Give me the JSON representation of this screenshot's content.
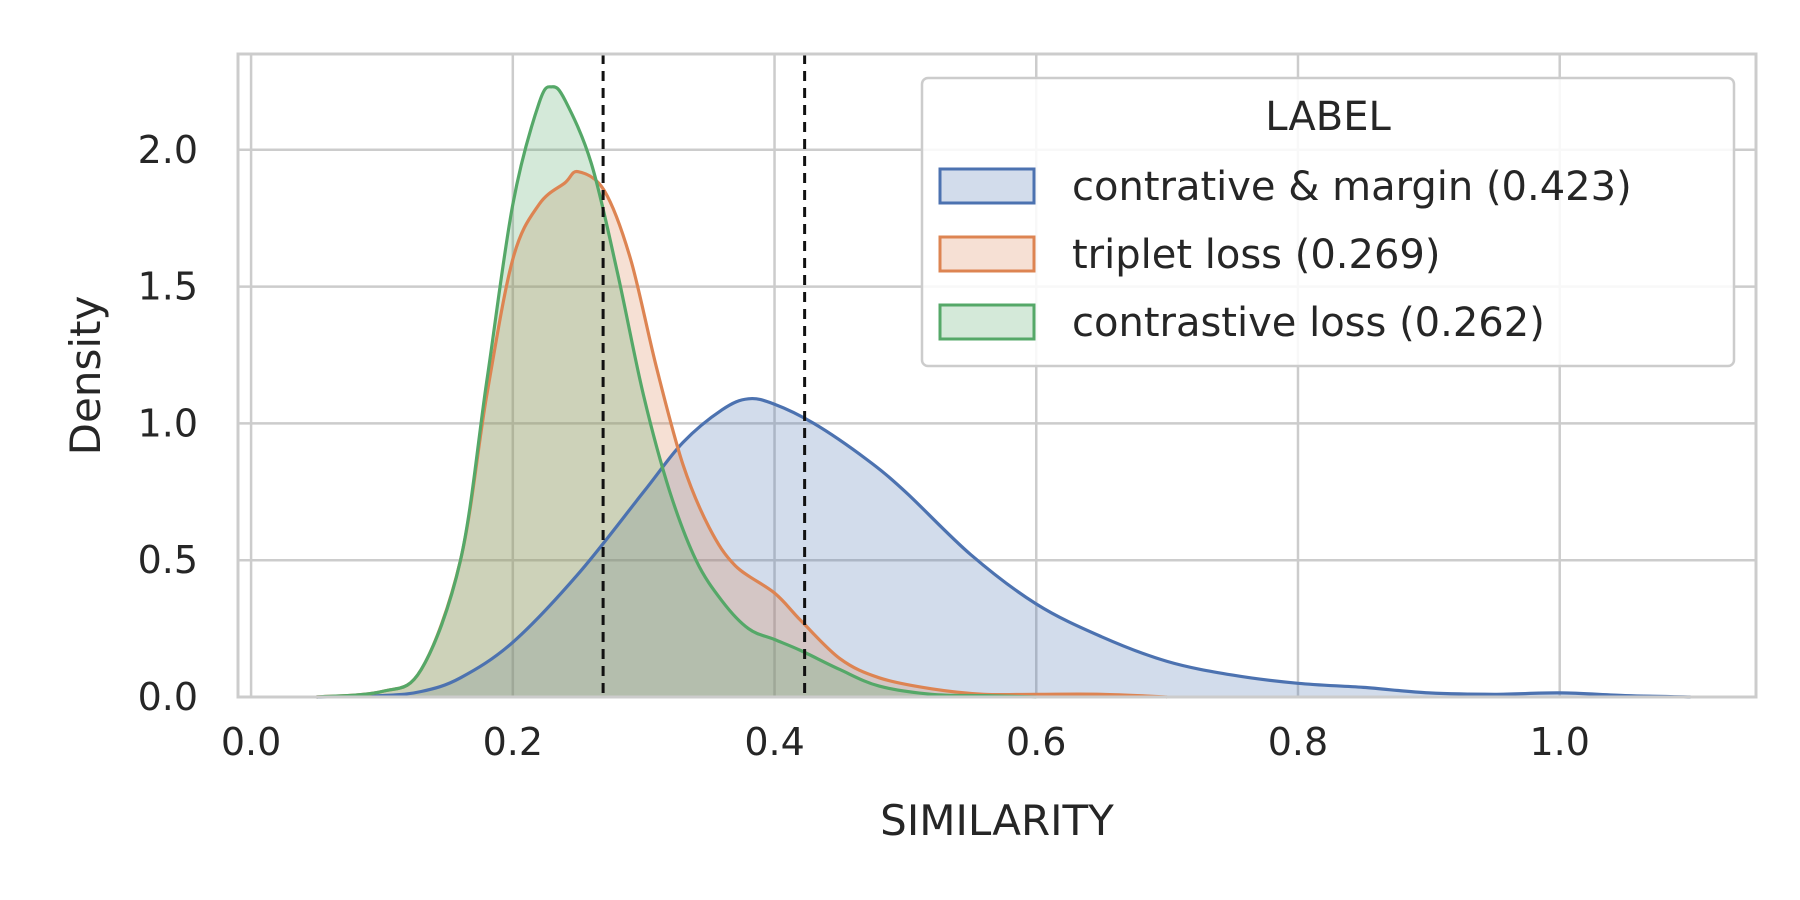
{
  "chart_data": {
    "type": "area",
    "xlabel": "SIMILARITY",
    "ylabel": "Density",
    "xlim": [
      -0.01,
      1.15
    ],
    "ylim": [
      0,
      2.35
    ],
    "xticks": [
      0.0,
      0.2,
      0.4,
      0.6,
      0.8,
      1.0
    ],
    "xtick_labels": [
      "0.0",
      "0.2",
      "0.4",
      "0.6",
      "0.8",
      "1.0"
    ],
    "yticks": [
      0.0,
      0.5,
      1.0,
      1.5,
      2.0
    ],
    "ytick_labels": [
      "0.0",
      "0.5",
      "1.0",
      "1.5",
      "2.0"
    ],
    "grid": true,
    "legend": {
      "title": "LABEL",
      "placement": "top-right"
    },
    "vlines": [
      {
        "x": 0.269,
        "style": "dashed",
        "color": "#111111"
      },
      {
        "x": 0.423,
        "style": "dashed",
        "color": "#111111"
      }
    ],
    "series": [
      {
        "name": "contrative & margin (0.423)",
        "color": "#4c72b0",
        "x": [
          0.05,
          0.1,
          0.13,
          0.16,
          0.2,
          0.25,
          0.3,
          0.33,
          0.36,
          0.38,
          0.4,
          0.43,
          0.47,
          0.5,
          0.55,
          0.6,
          0.65,
          0.7,
          0.75,
          0.8,
          0.85,
          0.9,
          0.95,
          1.0,
          1.05,
          1.1
        ],
        "y": [
          0.0,
          0.005,
          0.02,
          0.07,
          0.2,
          0.45,
          0.75,
          0.93,
          1.05,
          1.09,
          1.07,
          1.0,
          0.87,
          0.75,
          0.52,
          0.34,
          0.22,
          0.13,
          0.08,
          0.05,
          0.035,
          0.015,
          0.01,
          0.015,
          0.005,
          0.0
        ]
      },
      {
        "name": "triplet loss (0.269)",
        "color": "#dd8452",
        "x": [
          0.05,
          0.1,
          0.13,
          0.16,
          0.18,
          0.2,
          0.22,
          0.24,
          0.25,
          0.27,
          0.29,
          0.31,
          0.33,
          0.35,
          0.37,
          0.4,
          0.42,
          0.45,
          0.48,
          0.52,
          0.56,
          0.6,
          0.65,
          0.7
        ],
        "y": [
          0.0,
          0.02,
          0.1,
          0.5,
          1.1,
          1.6,
          1.8,
          1.88,
          1.92,
          1.85,
          1.6,
          1.2,
          0.85,
          0.62,
          0.48,
          0.38,
          0.28,
          0.14,
          0.07,
          0.03,
          0.01,
          0.01,
          0.01,
          0.0
        ]
      },
      {
        "name": "contrastive loss (0.262)",
        "color": "#55a868",
        "x": [
          0.05,
          0.1,
          0.13,
          0.16,
          0.18,
          0.2,
          0.22,
          0.23,
          0.24,
          0.26,
          0.28,
          0.3,
          0.32,
          0.34,
          0.36,
          0.38,
          0.4,
          0.42,
          0.45,
          0.48,
          0.52,
          0.56,
          0.6
        ],
        "y": [
          0.0,
          0.02,
          0.1,
          0.5,
          1.15,
          1.8,
          2.17,
          2.23,
          2.18,
          1.95,
          1.55,
          1.1,
          0.75,
          0.5,
          0.35,
          0.25,
          0.21,
          0.17,
          0.1,
          0.04,
          0.01,
          0.005,
          0.0
        ]
      }
    ]
  }
}
